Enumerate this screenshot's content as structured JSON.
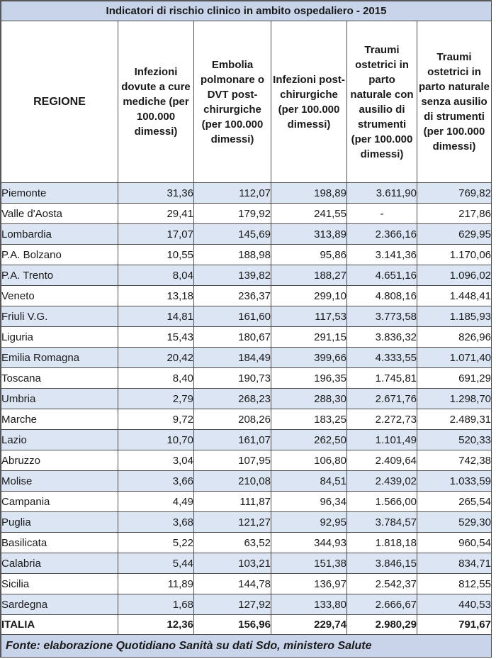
{
  "title": "Indicatori di rischio clinico in ambito ospedaliero - 2015",
  "headers": {
    "regione": "REGIONE",
    "col1": "Infezioni dovute a cure mediche (per 100.000 dimessi)",
    "col2": "Embolia polmonare o DVT post-chirurgiche (per 100.000 dimessi)",
    "col3": "Infezioni post-chirurgiche (per 100.000 dimessi)",
    "col4": "Traumi ostetrici in parto naturale con ausilio di strumenti (per 100.000 dimessi)",
    "col5": "Traumi ostetrici in parto naturale senza ausilio di strumenti (per 100.000 dimessi)"
  },
  "rows": [
    {
      "regione": "Piemonte",
      "c1": "31,36",
      "c2": "112,07",
      "c3": "198,89",
      "c4": "3.611,90",
      "c5": "769,82"
    },
    {
      "regione": "Valle d'Aosta",
      "c1": "29,41",
      "c2": "179,92",
      "c3": "241,55",
      "c4": "-",
      "c5": "217,86"
    },
    {
      "regione": "Lombardia",
      "c1": "17,07",
      "c2": "145,69",
      "c3": "313,89",
      "c4": "2.366,16",
      "c5": "629,95"
    },
    {
      "regione": "P.A. Bolzano",
      "c1": "10,55",
      "c2": "188,98",
      "c3": "95,86",
      "c4": "3.141,36",
      "c5": "1.170,06"
    },
    {
      "regione": "P.A. Trento",
      "c1": "8,04",
      "c2": "139,82",
      "c3": "188,27",
      "c4": "4.651,16",
      "c5": "1.096,02"
    },
    {
      "regione": "Veneto",
      "c1": "13,18",
      "c2": "236,37",
      "c3": "299,10",
      "c4": "4.808,16",
      "c5": "1.448,41"
    },
    {
      "regione": "Friuli V.G.",
      "c1": "14,81",
      "c2": "161,60",
      "c3": "117,53",
      "c4": "3.773,58",
      "c5": "1.185,93"
    },
    {
      "regione": "Liguria",
      "c1": "15,43",
      "c2": "180,67",
      "c3": "291,15",
      "c4": "3.836,32",
      "c5": "826,96"
    },
    {
      "regione": "Emilia Romagna",
      "c1": "20,42",
      "c2": "184,49",
      "c3": "399,66",
      "c4": "4.333,55",
      "c5": "1.071,40"
    },
    {
      "regione": "Toscana",
      "c1": "8,40",
      "c2": "190,73",
      "c3": "196,35",
      "c4": "1.745,81",
      "c5": "691,29"
    },
    {
      "regione": "Umbria",
      "c1": "2,79",
      "c2": "268,23",
      "c3": "288,30",
      "c4": "2.671,76",
      "c5": "1.298,70"
    },
    {
      "regione": "Marche",
      "c1": "9,72",
      "c2": "208,26",
      "c3": "183,25",
      "c4": "2.272,73",
      "c5": "2.489,31"
    },
    {
      "regione": "Lazio",
      "c1": "10,70",
      "c2": "161,07",
      "c3": "262,50",
      "c4": "1.101,49",
      "c5": "520,33"
    },
    {
      "regione": "Abruzzo",
      "c1": "3,04",
      "c2": "107,95",
      "c3": "106,80",
      "c4": "2.409,64",
      "c5": "742,38"
    },
    {
      "regione": "Molise",
      "c1": "3,66",
      "c2": "210,08",
      "c3": "84,51",
      "c4": "2.439,02",
      "c5": "1.033,59"
    },
    {
      "regione": "Campania",
      "c1": "4,49",
      "c2": "111,87",
      "c3": "96,34",
      "c4": "1.566,00",
      "c5": "265,54"
    },
    {
      "regione": "Puglia",
      "c1": "3,68",
      "c2": "121,27",
      "c3": "92,95",
      "c4": "3.784,57",
      "c5": "529,30"
    },
    {
      "regione": "Basilicata",
      "c1": "5,22",
      "c2": "63,52",
      "c3": "344,93",
      "c4": "1.818,18",
      "c5": "960,54"
    },
    {
      "regione": "Calabria",
      "c1": "5,44",
      "c2": "103,21",
      "c3": "151,38",
      "c4": "3.846,15",
      "c5": "834,71"
    },
    {
      "regione": "Sicilia",
      "c1": "11,89",
      "c2": "144,78",
      "c3": "136,97",
      "c4": "2.542,37",
      "c5": "812,55"
    },
    {
      "regione": "Sardegna",
      "c1": "1,68",
      "c2": "127,92",
      "c3": "133,80",
      "c4": "2.666,67",
      "c5": "440,53"
    }
  ],
  "total": {
    "regione": "ITALIA",
    "c1": "12,36",
    "c2": "156,96",
    "c3": "229,74",
    "c4": "2.980,29",
    "c5": "791,67"
  },
  "footer": "Fonte: elaborazione Quotidiano Sanità su dati Sdo, ministero Salute",
  "colors": {
    "band": "#dce5f3",
    "title_bg": "#c7d4ea",
    "border": "#4d4d4d"
  }
}
